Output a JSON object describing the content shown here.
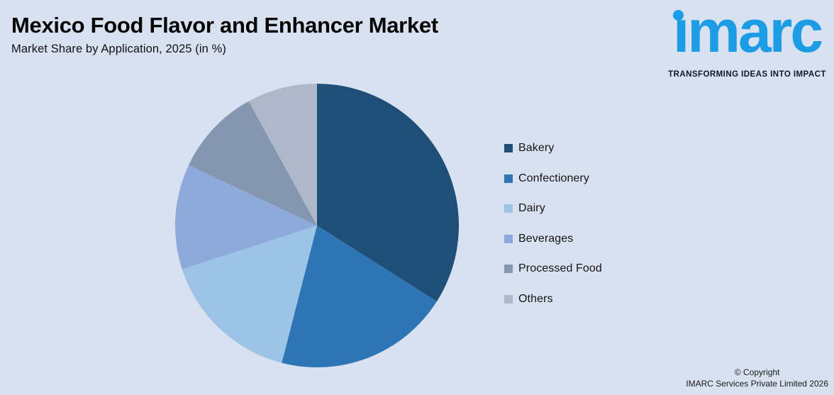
{
  "header": {
    "title": "Mexico Food Flavor and Enhancer Market",
    "subtitle": "Market Share by Application, 2025 (in %)"
  },
  "logo": {
    "brand": "imarc",
    "tagline": "TRANSFORMING IDEAS INTO IMPACT",
    "brand_color": "#1B9CE5"
  },
  "chart_data": {
    "type": "pie",
    "title": "Mexico Food Flavor and Enhancer Market",
    "subtitle": "Market Share by Application, 2025 (in %)",
    "unit": "%",
    "start_angle_deg": 0,
    "direction": "clockwise",
    "legend_position": "right",
    "data_labels_shown": false,
    "series": [
      {
        "name": "Bakery",
        "value": 34,
        "color": "#1F4E79"
      },
      {
        "name": "Confectionery",
        "value": 20,
        "color": "#2E75B6"
      },
      {
        "name": "Dairy",
        "value": 16,
        "color": "#9DC3E6"
      },
      {
        "name": "Beverages",
        "value": 12,
        "color": "#8EA9DB"
      },
      {
        "name": "Processed Food",
        "value": 10,
        "color": "#8496B0"
      },
      {
        "name": "Others",
        "value": 8,
        "color": "#ADB9CA"
      }
    ]
  },
  "footer": {
    "line1": "© Copyright",
    "line2": "IMARC Services Private Limited 2026"
  },
  "colors": {
    "background": "#D8E1F0",
    "title_text": "#050505",
    "legend_text": "#151515"
  }
}
